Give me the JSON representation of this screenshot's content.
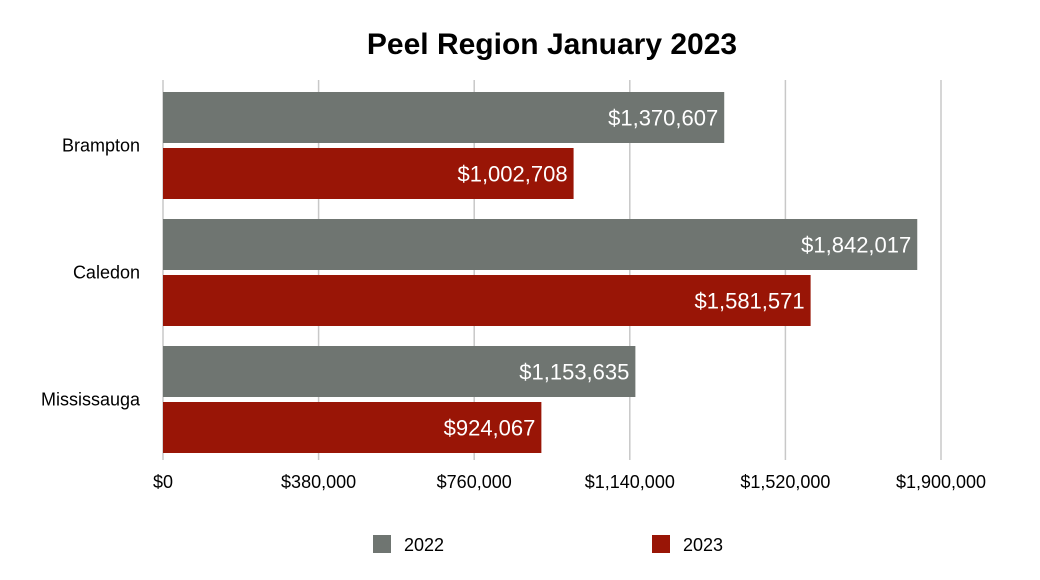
{
  "chart_data": {
    "type": "bar",
    "orientation": "horizontal",
    "title": "Peel Region January 2023",
    "xlabel": "",
    "ylabel": "",
    "categories": [
      "Brampton",
      "Caledon",
      "Mississauga"
    ],
    "series": [
      {
        "name": "2022",
        "color": "#6f7571",
        "values": [
          1370607,
          1842017,
          1153635
        ],
        "labels": [
          "$1,370,607",
          "$1,842,017",
          "$1,153,635"
        ]
      },
      {
        "name": "2023",
        "color": "#991506",
        "values": [
          1002708,
          1581571,
          924067
        ],
        "labels": [
          "$1,002,708",
          "$1,581,571",
          "$924,067"
        ]
      }
    ],
    "xlim": [
      0,
      1900000
    ],
    "x_ticks": [
      0,
      380000,
      760000,
      1140000,
      1520000,
      1900000
    ],
    "x_tick_labels": [
      "$0",
      "$380,000",
      "$760,000",
      "$1,140,000",
      "$1,520,000",
      "$1,900,000"
    ],
    "grid": "vertical",
    "legend_position": "bottom"
  }
}
